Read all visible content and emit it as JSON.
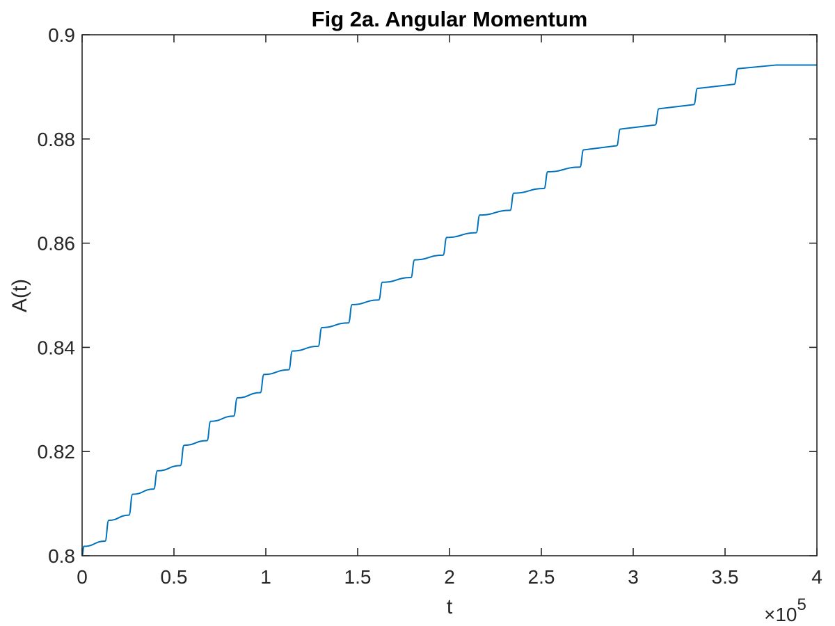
{
  "chart_data": {
    "type": "line",
    "title": "Fig 2a. Angular Momentum",
    "xlabel": "t",
    "ylabel": "A(t)",
    "x_exponent_label": "×10",
    "x_exponent_power": "5",
    "xlim": [
      0,
      400000
    ],
    "ylim": [
      0.8,
      0.9
    ],
    "xticks": [
      0,
      50000,
      100000,
      150000,
      200000,
      250000,
      300000,
      350000,
      400000
    ],
    "xtick_labels": [
      "0",
      "0.5",
      "1",
      "1.5",
      "2",
      "2.5",
      "3",
      "3.5",
      "4"
    ],
    "yticks": [
      0.8,
      0.82,
      0.84,
      0.86,
      0.88,
      0.9
    ],
    "ytick_labels": [
      "0.8",
      "0.82",
      "0.84",
      "0.86",
      "0.88",
      "0.9"
    ],
    "grid": false,
    "series": [
      {
        "color": "#0072BD",
        "x": [
          0,
          1000,
          12500,
          14500,
          25500,
          27500,
          39000,
          41000,
          53500,
          55500,
          68000,
          70000,
          82500,
          84500,
          97000,
          99000,
          112500,
          114500,
          128500,
          130500,
          145000,
          147000,
          161500,
          163500,
          179000,
          181000,
          196500,
          198500,
          214500,
          216500,
          233000,
          235000,
          251500,
          253500,
          271000,
          273000,
          291000,
          293000,
          312000,
          314000,
          333000,
          335000,
          355000,
          357000,
          378000,
          380000,
          400000
        ],
        "y": [
          0.8,
          0.8018,
          0.8028,
          0.8068,
          0.8078,
          0.8118,
          0.8128,
          0.8163,
          0.8173,
          0.8212,
          0.8221,
          0.8258,
          0.8268,
          0.8303,
          0.8313,
          0.8348,
          0.8357,
          0.8393,
          0.8402,
          0.8438,
          0.8447,
          0.8482,
          0.8491,
          0.8525,
          0.8534,
          0.8568,
          0.8577,
          0.8611,
          0.862,
          0.8654,
          0.8663,
          0.8696,
          0.8705,
          0.8737,
          0.8746,
          0.8779,
          0.8787,
          0.8819,
          0.8827,
          0.8858,
          0.8866,
          0.8897,
          0.8905,
          0.8935,
          0.8942,
          0.8942,
          0.8942
        ]
      }
    ]
  }
}
